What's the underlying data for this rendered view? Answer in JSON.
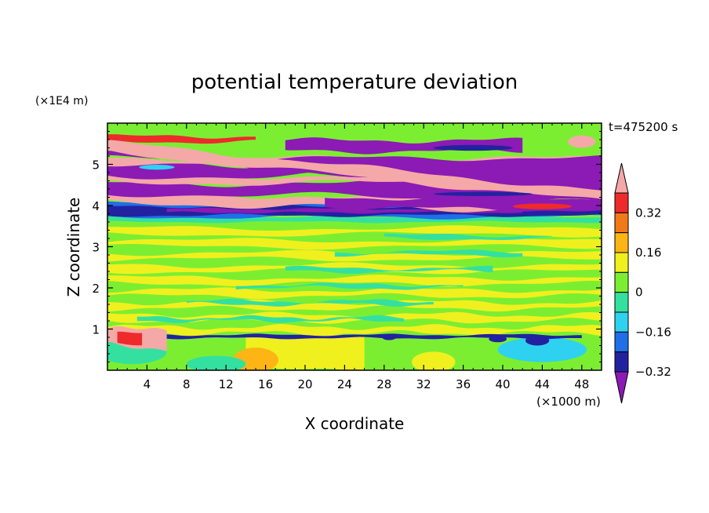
{
  "chart_data": {
    "type": "heatmap",
    "title": "potential temperature deviation",
    "xlabel": "X coordinate",
    "ylabel": "Z coordinate",
    "x_unit": "(×1000 m)",
    "y_unit": "(×1E4 m)",
    "time_label": "t=475200 s",
    "xlim": [
      0,
      50
    ],
    "ylim": [
      0,
      6
    ],
    "x_ticks": [
      4,
      8,
      12,
      16,
      20,
      24,
      28,
      32,
      36,
      40,
      44,
      48
    ],
    "y_ticks": [
      1,
      2,
      3,
      4,
      5
    ],
    "colorbar": {
      "levels": [
        -0.4,
        -0.32,
        -0.24,
        -0.16,
        -0.08,
        0,
        0.08,
        0.16,
        0.24,
        0.32,
        0.4
      ],
      "tick_labels": [
        "0.32",
        "0.16",
        "0",
        "−0.16",
        "−0.32"
      ],
      "tick_values": [
        0.32,
        0.16,
        0,
        -0.16,
        -0.32
      ],
      "colors": [
        "#8c1ab4",
        "#2222a0",
        "#1f6fe8",
        "#2ed2f0",
        "#34e0a0",
        "#7cee32",
        "#f0f01e",
        "#fdb515",
        "#f07a18",
        "#ee2a2a",
        "#f4a8a8"
      ]
    }
  }
}
